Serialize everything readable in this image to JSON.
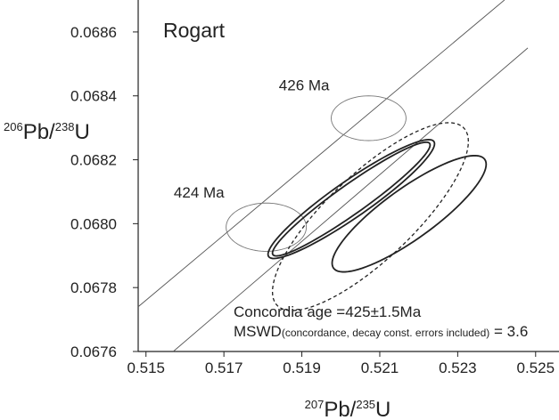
{
  "chart_data": {
    "type": "concordia",
    "title": "Rogart",
    "xlabel": [
      "207",
      "Pb/",
      "235",
      "U"
    ],
    "ylabel": [
      "206",
      "Pb/",
      "238",
      "U"
    ],
    "xlim": [
      0.5148,
      0.5256
    ],
    "ylim": [
      0.0676,
      0.0687
    ],
    "xticks": [
      0.515,
      0.517,
      0.519,
      0.521,
      0.523,
      0.525
    ],
    "yticks": [
      0.0676,
      0.0678,
      {
        "value": 0.068,
        "label": "0.0680"
      },
      0.0682,
      0.0684,
      0.0686
    ],
    "envelope": [
      {
        "x": [
          0.5148,
          0.5242
        ],
        "y": [
          0.06774,
          0.0687
        ]
      },
      {
        "x": [
          0.5157,
          0.5248
        ],
        "y": [
          0.0676,
          0.06855
        ]
      }
    ],
    "age_markers": [
      {
        "label": "424 Ma",
        "x": 0.518086,
        "y": 0.067989,
        "sx": 0.001029,
        "sy": 7.55e-05
      },
      {
        "label": "426 Ma",
        "x": 0.520714,
        "y": 0.06833,
        "sx": 0.00096,
        "sy": 7e-05
      }
    ],
    "ellipses": [
      {
        "x": 0.520269,
        "y": 0.068077,
        "sx": 0.002137,
        "sy": 0.000186,
        "rho": 0.93,
        "style": "solid"
      },
      {
        "x": 0.520269,
        "y": 0.068077,
        "sx": 0.002023,
        "sy": 0.000178,
        "rho": 0.95,
        "style": "solid"
      },
      {
        "x": 0.521754,
        "y": 0.068031,
        "sx": 0.001977,
        "sy": 0.000182,
        "rho": 0.85,
        "style": "solid"
      },
      {
        "x": 0.52076,
        "y": 0.068022,
        "sx": 0.002514,
        "sy": 0.000294,
        "rho": 0.8,
        "style": "dashed"
      }
    ],
    "annotation": "Concordia age =425±1.5Ma",
    "mswd": [
      "MSWD",
      "(concordance, decay const. errors included)",
      " = 3.6"
    ]
  }
}
